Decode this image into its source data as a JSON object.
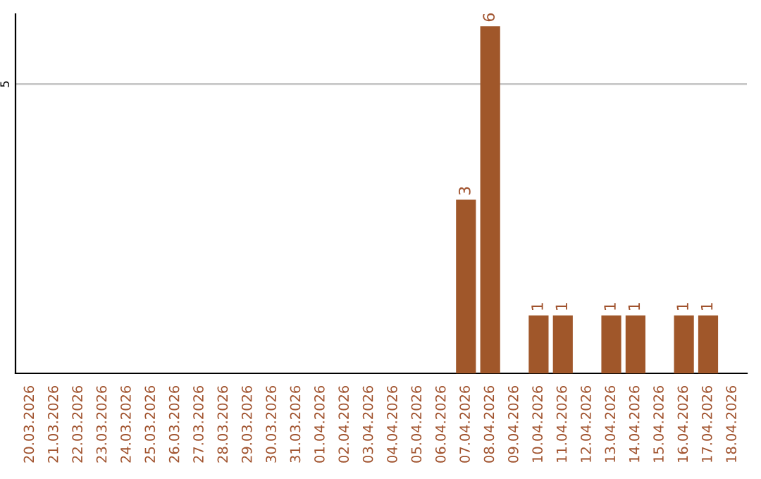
{
  "chart_data": {
    "type": "bar",
    "categories": [
      "20.03.2026",
      "21.03.2026",
      "22.03.2026",
      "23.03.2026",
      "24.03.2026",
      "25.03.2026",
      "26.03.2026",
      "27.03.2026",
      "28.03.2026",
      "29.03.2026",
      "30.03.2026",
      "31.03.2026",
      "01.04.2026",
      "02.04.2026",
      "03.04.2026",
      "04.04.2026",
      "05.04.2026",
      "06.04.2026",
      "07.04.2026",
      "08.04.2026",
      "09.04.2026",
      "10.04.2026",
      "11.04.2026",
      "12.04.2026",
      "13.04.2026",
      "14.04.2026",
      "15.04.2026",
      "16.04.2026",
      "17.04.2026",
      "18.04.2026"
    ],
    "values": [
      null,
      null,
      null,
      null,
      null,
      null,
      null,
      null,
      null,
      null,
      null,
      null,
      null,
      null,
      null,
      null,
      null,
      null,
      3,
      6,
      null,
      1,
      1,
      null,
      1,
      1,
      null,
      1,
      1,
      null
    ],
    "value_labels": [
      null,
      null,
      null,
      null,
      null,
      null,
      null,
      null,
      null,
      null,
      null,
      null,
      null,
      null,
      null,
      null,
      null,
      null,
      "3",
      "6",
      null,
      "1",
      "1",
      null,
      "1",
      "1",
      null,
      "1",
      "1",
      null
    ],
    "color": "#a0572a",
    "ref_lines": [
      {
        "axis": "y",
        "value": 5,
        "label": "5",
        "color": "#c8c8c8"
      }
    ]
  }
}
